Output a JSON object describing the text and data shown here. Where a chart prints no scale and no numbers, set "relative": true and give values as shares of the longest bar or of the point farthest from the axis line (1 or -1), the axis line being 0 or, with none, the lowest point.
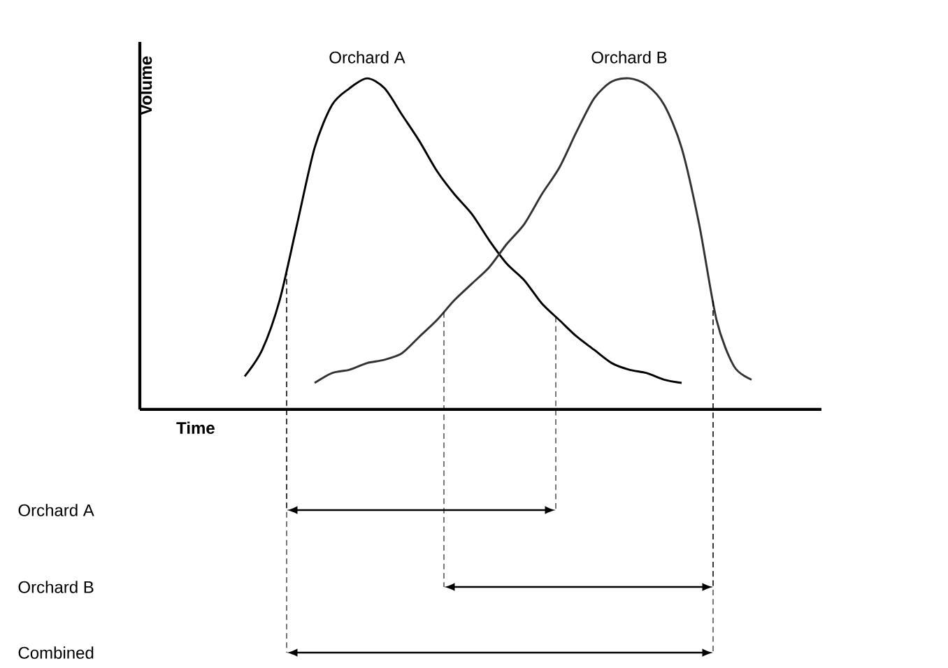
{
  "chart_data": {
    "type": "line",
    "relative": true,
    "xlabel": "Time",
    "ylabel": "Volume",
    "tick_labels": false,
    "marker": "none",
    "line_style": "solid",
    "categories": [
      null,
      null,
      null,
      null,
      null,
      null,
      null,
      null,
      null,
      null,
      null,
      null,
      null,
      null,
      null,
      null,
      null,
      null,
      null,
      null,
      null,
      null,
      null,
      null,
      null,
      null,
      null,
      null,
      null,
      null,
      null,
      null,
      null,
      null,
      null,
      null,
      null,
      null,
      null,
      null
    ],
    "series": [
      {
        "name": "Orchard A",
        "color": "#000000",
        "values": [
          null,
          null,
          null,
          null,
          null,
          null,
          0.1,
          0.18,
          0.33,
          0.56,
          0.79,
          0.92,
          0.97,
          1.0,
          0.97,
          0.89,
          0.81,
          0.72,
          0.65,
          0.59,
          0.51,
          0.44,
          0.39,
          0.32,
          0.27,
          0.22,
          0.18,
          0.14,
          0.12,
          0.11,
          0.09,
          0.08,
          null,
          null,
          null,
          null,
          null,
          null,
          null,
          null
        ]
      },
      {
        "name": "Orchard B",
        "color": "#333333",
        "values": [
          null,
          null,
          null,
          null,
          null,
          null,
          null,
          null,
          null,
          null,
          0.08,
          0.11,
          0.12,
          0.14,
          0.15,
          0.17,
          0.22,
          0.27,
          0.33,
          0.38,
          0.43,
          0.5,
          0.56,
          0.65,
          0.73,
          0.84,
          0.94,
          0.99,
          1.0,
          0.98,
          0.92,
          0.79,
          0.56,
          0.27,
          0.13,
          0.09,
          null,
          null,
          null,
          null
        ]
      }
    ],
    "annotations": [
      "Orchard A",
      "Orchard B",
      "Combined"
    ]
  }
}
